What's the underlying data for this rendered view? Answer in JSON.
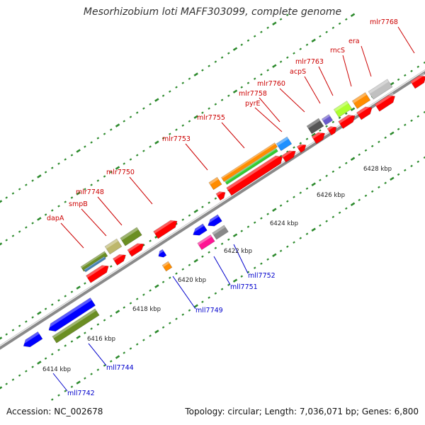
{
  "title": "Mesorhizobium loti MAFF303099, complete genome",
  "footer": {
    "accession": "Accession: NC_002678",
    "summary": "Topology: circular; Length: 7,036,071 bp; Genes: 6,800"
  },
  "colors": {
    "backbone": "#8a8a8a",
    "tick_dots": "#2e8b2e",
    "label_top": "#cc0000",
    "label_bottom": "#0000cc"
  },
  "scale_ticks": [
    "6414 kbp",
    "6416 kbp",
    "6418 kbp",
    "6420 kbp",
    "6422 kbp",
    "6424 kbp",
    "6426 kbp",
    "6428 kbp"
  ],
  "genes_top": [
    "dapA",
    "smpB",
    "mlr7748",
    "mlr7750",
    "mlr7753",
    "mlr7755",
    "mlr7758",
    "pyrE",
    "mlr7760",
    "mlr7763",
    "acpS",
    "rncS",
    "era",
    "mlr7768"
  ],
  "genes_bottom": [
    "mll7742",
    "mll7744",
    "mll7749",
    "mll7751",
    "mll7752"
  ]
}
